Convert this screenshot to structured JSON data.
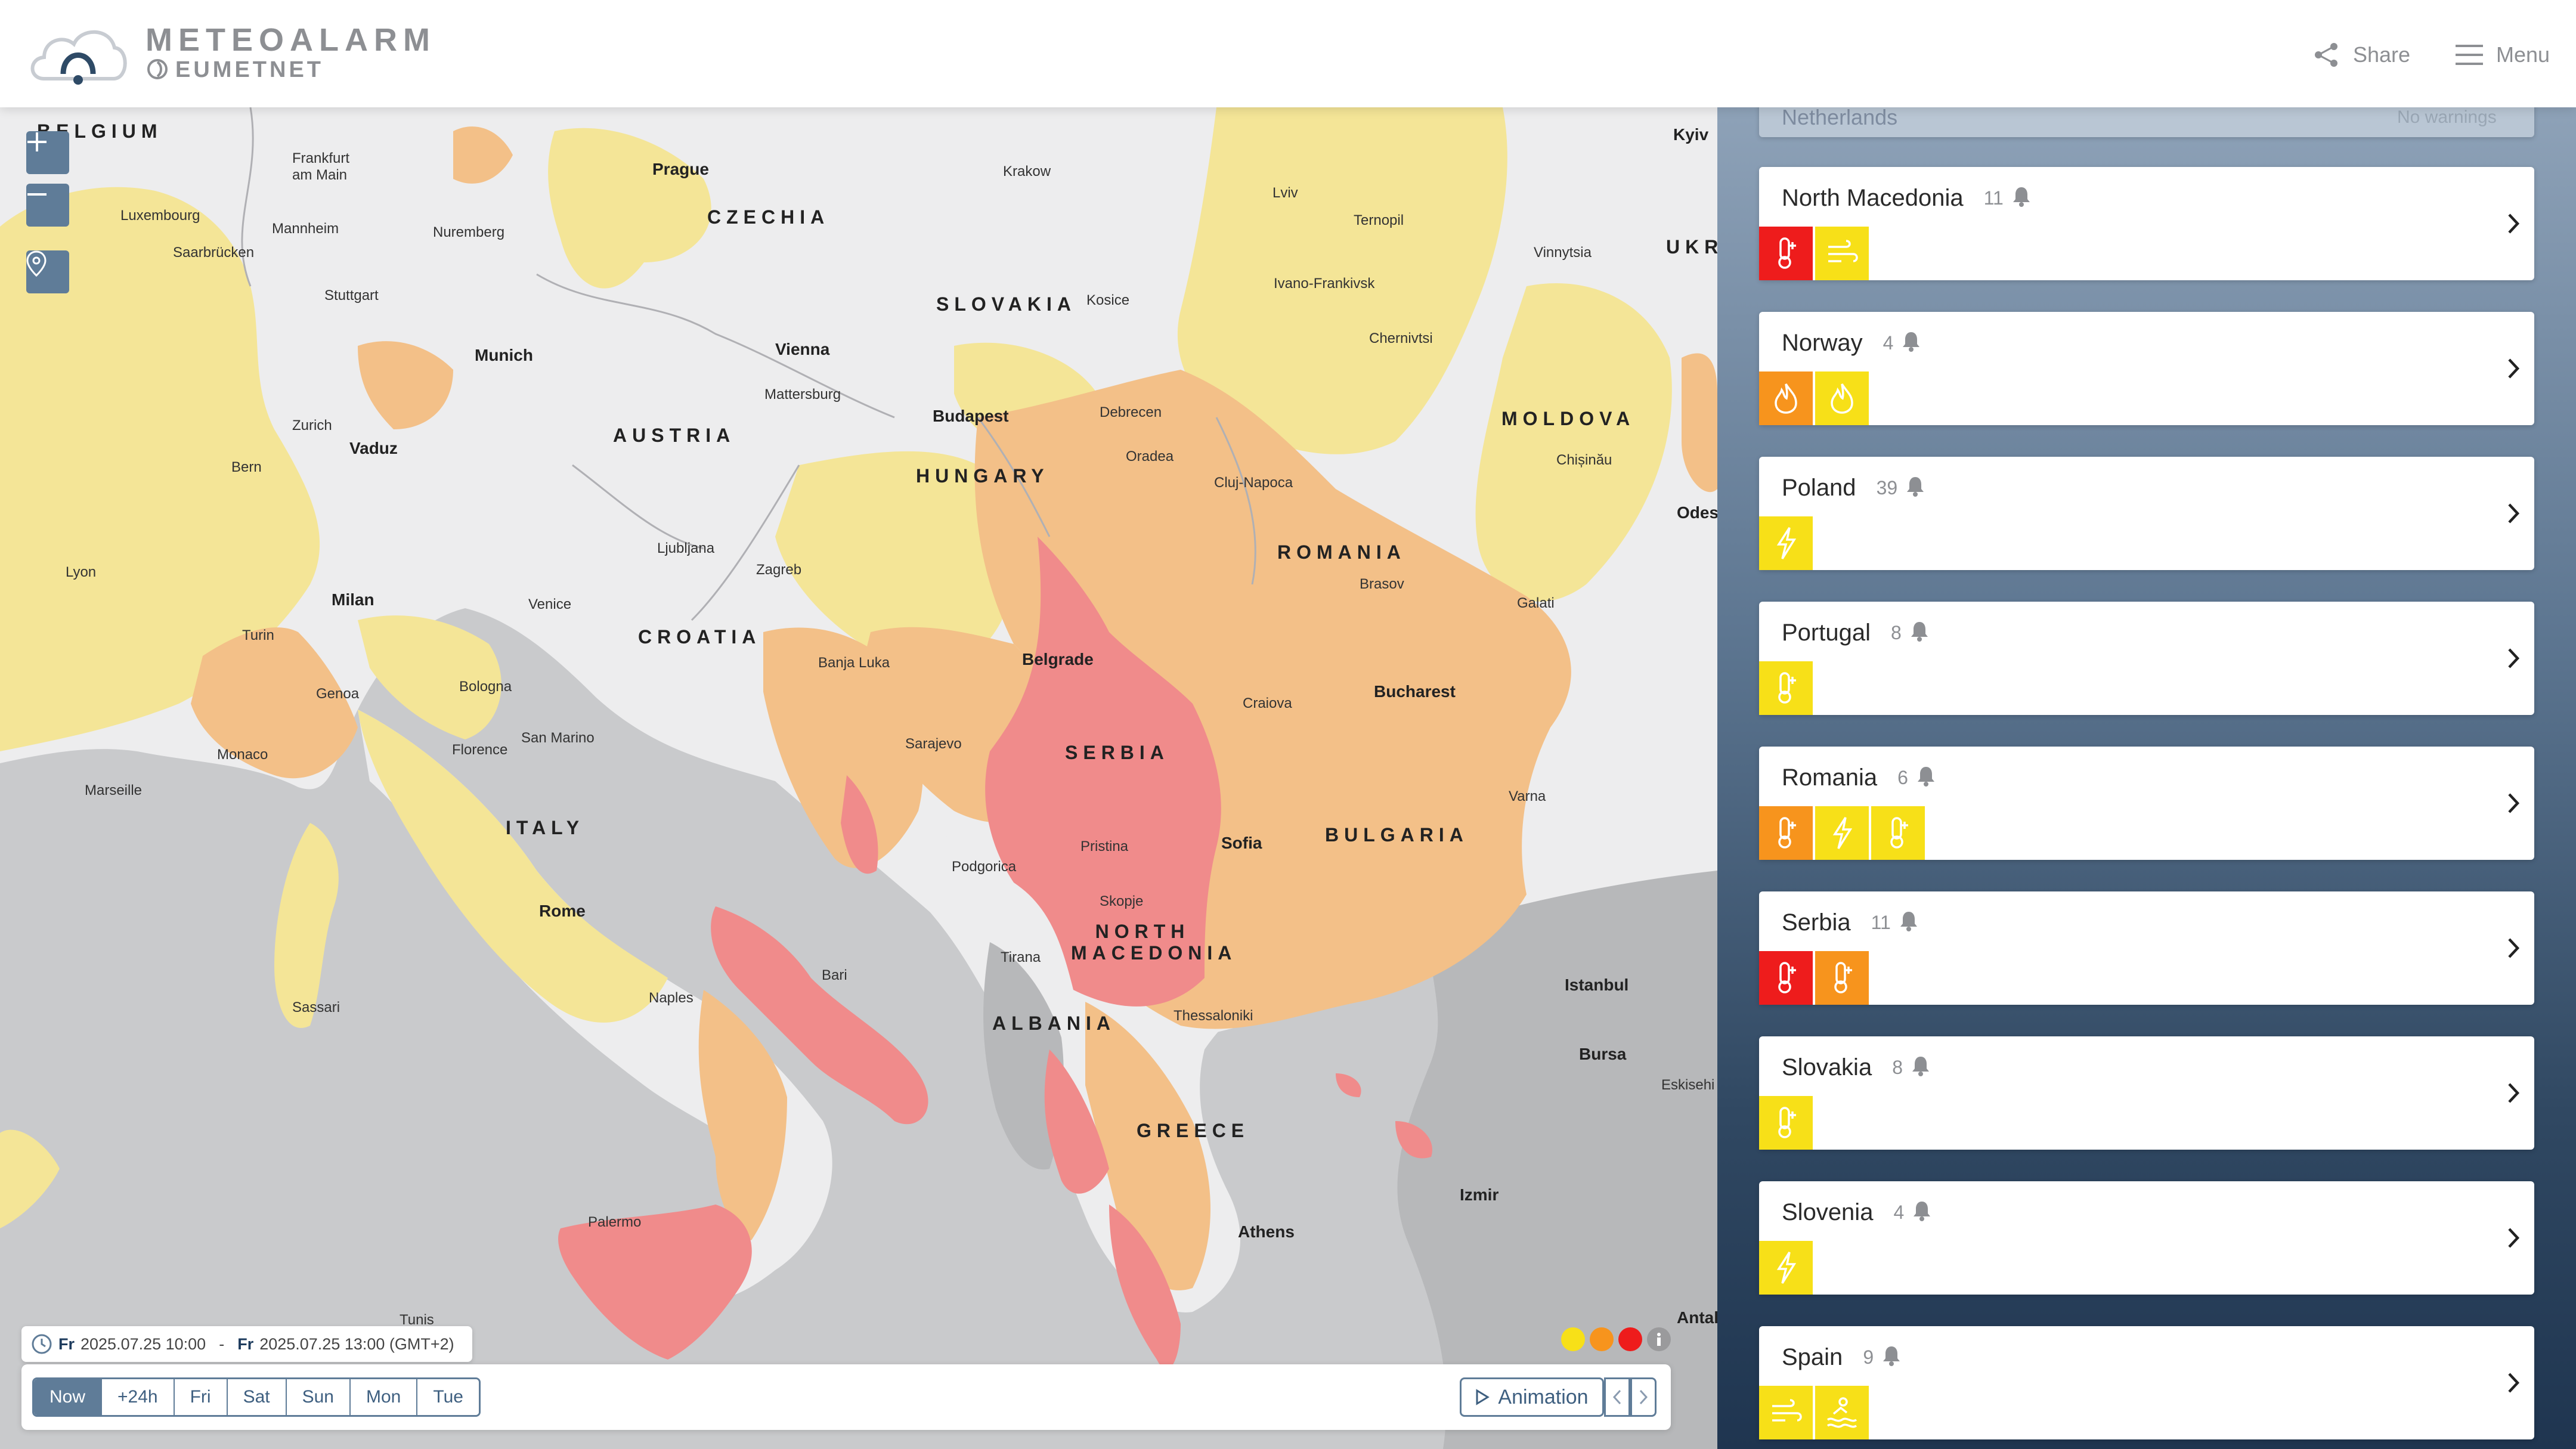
{
  "header": {
    "logo_title": "METEOALARM",
    "logo_sub": "EUMETNET",
    "share_label": "Share",
    "menu_label": "Menu"
  },
  "map": {
    "cities": [
      "Frankfurt am Main",
      "Prague",
      "Krakow",
      "Lviv",
      "Kyiv",
      "Luxembourg",
      "Mannheim",
      "Nuremberg",
      "Saarbrücken",
      "Stuttgart",
      "Munich",
      "Vienna",
      "Kosice",
      "Ternopil",
      "Vinnytsia",
      "Ivano-Frankivsk",
      "Chernivtsi",
      "Mattersburg",
      "Zurich",
      "Vaduz",
      "Bern",
      "Budapest",
      "Debrecen",
      "Oradea",
      "Cluj-Napoca",
      "Chișinău",
      "Lyon",
      "Milan",
      "Turin",
      "Ljubljana",
      "Zagreb",
      "Venice",
      "Genoa",
      "Bologna",
      "Brasov",
      "Galati",
      "Odes",
      "Banja Luka",
      "Belgrade",
      "Craiova",
      "Bucharest",
      "Monaco",
      "Florence",
      "San Marino",
      "Sarajevo",
      "Marseille",
      "Varna",
      "Podgorica",
      "Pristina",
      "Sofia",
      "Skopje",
      "Rome",
      "Tirana",
      "Istanbul",
      "Bursa",
      "Eskisehi",
      "Bari",
      "Sassari",
      "Naples",
      "Thessaloniki",
      "Izmir",
      "Palermo",
      "Athens",
      "Antal",
      "Tunis"
    ],
    "countries": [
      "BELGIUM",
      "CZECHIA",
      "SLOVAKIA",
      "UKR",
      "AUSTRIA",
      "MOLDOVA",
      "HUNGARY",
      "ROMANIA",
      "CROATIA",
      "SERBIA",
      "BULGARIA",
      "ITALY",
      "NORTH MACEDONIA",
      "ALBANIA",
      "GREECE"
    ],
    "zoom_in": "+",
    "zoom_out": "−"
  },
  "time": {
    "from_day": "Fr",
    "from_time": "2025.07.25 10:00",
    "separator": "-",
    "to_day": "Fr",
    "to_time": "2025.07.25 13:00 (GMT+2)",
    "tabs": [
      "Now",
      "+24h",
      "Fri",
      "Sat",
      "Sun",
      "Mon",
      "Tue"
    ],
    "active_tab": 0,
    "animation_label": "Animation"
  },
  "legend_colors": {
    "yellow": "#f7e018",
    "orange": "#f7941d",
    "red": "#ee1c1c"
  },
  "panel": {
    "partial_top": {
      "name": "Netherlands",
      "status": "No warnings"
    },
    "countries": [
      {
        "name": "North Macedonia",
        "count": "11",
        "warnings": [
          {
            "level": "red",
            "icon": "high-temperature-icon"
          },
          {
            "level": "yellow",
            "icon": "wind-icon"
          }
        ]
      },
      {
        "name": "Norway",
        "count": "4",
        "warnings": [
          {
            "level": "orange",
            "icon": "forest-fire-icon"
          },
          {
            "level": "yellow",
            "icon": "forest-fire-icon"
          }
        ]
      },
      {
        "name": "Poland",
        "count": "39",
        "warnings": [
          {
            "level": "yellow",
            "icon": "thunderstorm-icon"
          }
        ]
      },
      {
        "name": "Portugal",
        "count": "8",
        "warnings": [
          {
            "level": "yellow",
            "icon": "high-temperature-icon"
          }
        ]
      },
      {
        "name": "Romania",
        "count": "6",
        "warnings": [
          {
            "level": "orange",
            "icon": "high-temperature-icon"
          },
          {
            "level": "yellow",
            "icon": "thunderstorm-icon"
          },
          {
            "level": "yellow",
            "icon": "high-temperature-icon"
          }
        ]
      },
      {
        "name": "Serbia",
        "count": "11",
        "warnings": [
          {
            "level": "red",
            "icon": "high-temperature-icon"
          },
          {
            "level": "orange",
            "icon": "high-temperature-icon"
          }
        ]
      },
      {
        "name": "Slovakia",
        "count": "8",
        "warnings": [
          {
            "level": "yellow",
            "icon": "high-temperature-icon"
          }
        ]
      },
      {
        "name": "Slovenia",
        "count": "4",
        "warnings": [
          {
            "level": "yellow",
            "icon": "thunderstorm-icon"
          }
        ]
      },
      {
        "name": "Spain",
        "count": "9",
        "warnings": [
          {
            "level": "yellow",
            "icon": "wind-icon"
          },
          {
            "level": "yellow",
            "icon": "coastal-event-icon"
          }
        ]
      }
    ]
  }
}
